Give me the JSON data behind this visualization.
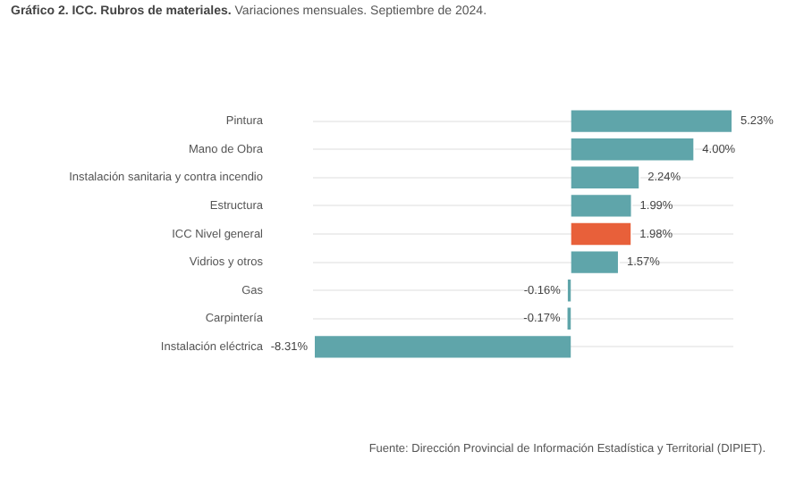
{
  "chart_data": {
    "type": "bar",
    "orientation": "horizontal",
    "title": "Gráfico 2. ICC. Rubros de materiales.",
    "subtitle": "Variaciones mensuales. Septiembre de 2024.",
    "categories": [
      "Pintura",
      "Mano de Obra",
      "Instalación sanitaria y contra incendio",
      "Estructura",
      "ICC Nivel general",
      "Vidrios y otros",
      "Gas",
      "Carpintería",
      "Instalación eléctrica"
    ],
    "values": [
      5.23,
      4.0,
      2.24,
      1.99,
      1.98,
      1.57,
      -0.16,
      -0.17,
      -8.31
    ],
    "value_labels": [
      "5.23%",
      "4.00%",
      "2.24%",
      "1.99%",
      "1.98%",
      "1.57%",
      "-0.16%",
      "-0.17%",
      "-8.31%"
    ],
    "colors": [
      "#5fa5aa",
      "#5fa5aa",
      "#5fa5aa",
      "#5fa5aa",
      "#e8603a",
      "#5fa5aa",
      "#5fa5aa",
      "#5fa5aa",
      "#5fa5aa"
    ],
    "grid": "y",
    "legend": false,
    "annotations": [
      "Fuente: Dirección Provincial de Información Estadística y Territorial (DIPIET)."
    ]
  }
}
